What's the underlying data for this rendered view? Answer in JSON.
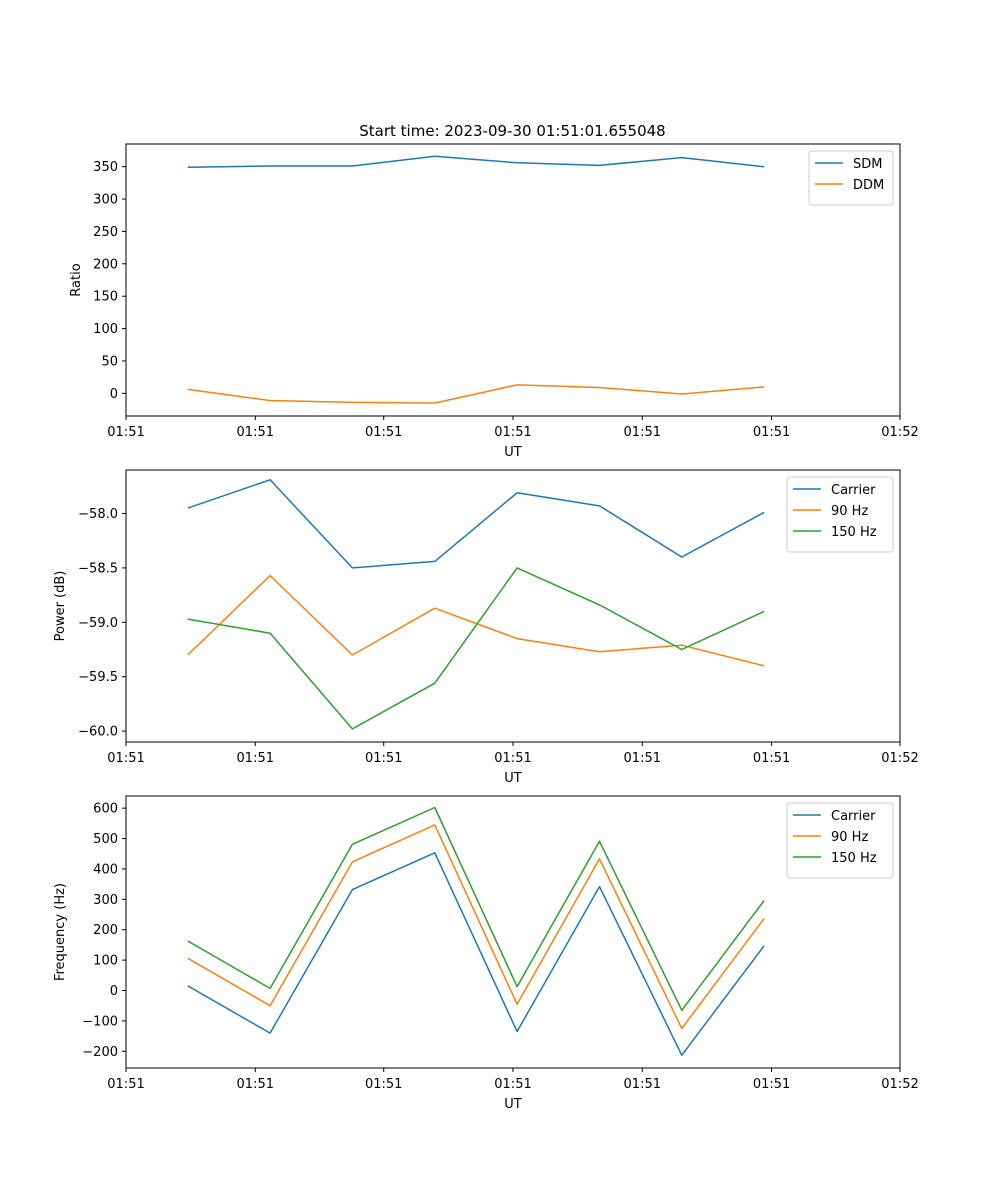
{
  "figure_title": "Start time: 2023-09-30 01:51:01.655048",
  "chart_data": [
    {
      "type": "line",
      "title": "Start time: 2023-09-30 01:51:01.655048",
      "xlabel": "UT",
      "ylabel": "Ratio",
      "x_index": [
        0,
        1,
        2,
        3,
        4,
        5,
        6,
        7
      ],
      "xlim": [
        -0.75,
        8.65
      ],
      "xticks": [
        -0.75,
        0.82,
        2.38,
        3.95,
        5.52,
        7.09,
        8.65
      ],
      "xtick_labels": [
        "01:51",
        "01:51",
        "01:51",
        "01:51",
        "01:51",
        "01:51",
        "01:52"
      ],
      "ylim": [
        -35,
        385
      ],
      "yticks": [
        0,
        50,
        100,
        150,
        200,
        250,
        300,
        350
      ],
      "ytick_labels": [
        "0",
        "50",
        "100",
        "150",
        "200",
        "250",
        "300",
        "350"
      ],
      "legend": "top-right",
      "series": [
        {
          "name": "SDM",
          "color": "#1f77b4",
          "values": [
            349,
            351,
            351,
            366,
            356,
            352,
            364,
            350
          ]
        },
        {
          "name": "DDM",
          "color": "#ff7f0e",
          "values": [
            6,
            -11,
            -14,
            -15,
            13,
            9,
            -1,
            10
          ]
        }
      ]
    },
    {
      "type": "line",
      "title": "",
      "xlabel": "UT",
      "ylabel": "Power (dB)",
      "x_index": [
        0,
        1,
        2,
        3,
        4,
        5,
        6,
        7
      ],
      "xlim": [
        -0.75,
        8.65
      ],
      "xticks": [
        -0.75,
        0.82,
        2.38,
        3.95,
        5.52,
        7.09,
        8.65
      ],
      "xtick_labels": [
        "01:51",
        "01:51",
        "01:51",
        "01:51",
        "01:51",
        "01:51",
        "01:52"
      ],
      "ylim": [
        -60.1,
        -57.6
      ],
      "yticks": [
        -58.0,
        -58.5,
        -59.0,
        -59.5,
        -60.0
      ],
      "ytick_labels": [
        "−58.0",
        "−58.5",
        "−59.0",
        "−59.5",
        "−60.0"
      ],
      "legend": "top-right",
      "series": [
        {
          "name": "Carrier",
          "color": "#1f77b4",
          "values": [
            -57.95,
            -57.69,
            -58.5,
            -58.44,
            -57.81,
            -57.93,
            -58.4,
            -57.99
          ]
        },
        {
          "name": "90 Hz",
          "color": "#ff7f0e",
          "values": [
            -59.3,
            -58.57,
            -59.3,
            -58.87,
            -59.15,
            -59.27,
            -59.21,
            -59.4
          ]
        },
        {
          "name": "150 Hz",
          "color": "#2ca02c",
          "values": [
            -58.97,
            -59.1,
            -59.98,
            -59.56,
            -58.5,
            -58.84,
            -59.25,
            -58.9
          ]
        }
      ]
    },
    {
      "type": "line",
      "title": "",
      "xlabel": "UT",
      "ylabel": "Frequency (Hz)",
      "x_index": [
        0,
        1,
        2,
        3,
        4,
        5,
        6,
        7
      ],
      "xlim": [
        -0.75,
        8.65
      ],
      "xticks": [
        -0.75,
        0.82,
        2.38,
        3.95,
        5.52,
        7.09,
        8.65
      ],
      "xtick_labels": [
        "01:51",
        "01:51",
        "01:51",
        "01:51",
        "01:51",
        "01:51",
        "01:52"
      ],
      "ylim": [
        -255,
        640
      ],
      "yticks": [
        600,
        500,
        400,
        300,
        200,
        100,
        0,
        -100,
        -200
      ],
      "ytick_labels": [
        "600",
        "500",
        "400",
        "300",
        "200",
        "100",
        "0",
        "−100",
        "−200"
      ],
      "legend": "top-right",
      "series": [
        {
          "name": "Carrier",
          "color": "#1f77b4",
          "values": [
            15,
            -140,
            332,
            453,
            -135,
            342,
            -213,
            147
          ]
        },
        {
          "name": "90 Hz",
          "color": "#ff7f0e",
          "values": [
            106,
            -50,
            423,
            545,
            -45,
            433,
            -125,
            237
          ]
        },
        {
          "name": "150 Hz",
          "color": "#2ca02c",
          "values": [
            163,
            7,
            481,
            602,
            13,
            491,
            -65,
            296
          ]
        }
      ]
    }
  ]
}
